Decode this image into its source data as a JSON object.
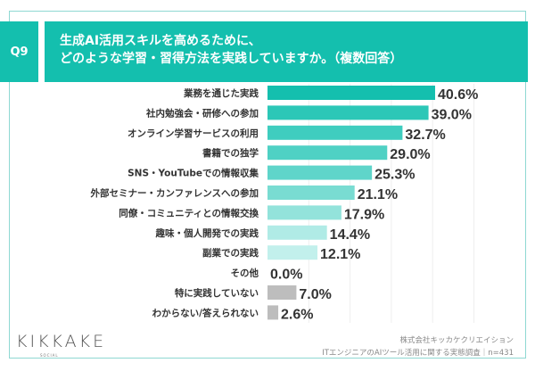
{
  "header": {
    "badge": "Q9",
    "title_line1": "生成AI活用スキルを高めるために、",
    "title_line2": "どのような学習・習得方法を実践していますか。（複数回答）"
  },
  "chart_data": {
    "type": "bar",
    "orientation": "horizontal",
    "categories": [
      "業務を通じた実践",
      "社内勉強会・研修への参加",
      "オンライン学習サービスの利用",
      "書籍での独学",
      "SNS・YouTubeでの情報収集",
      "外部セミナー・カンファレンスへの参加",
      "同僚・コミュニティとの情報交換",
      "趣味・個人開発での実践",
      "副業での実践",
      "その他",
      "特に実践していない",
      "わからない/答えられない"
    ],
    "values": [
      40.6,
      39.0,
      32.7,
      29.0,
      25.3,
      21.1,
      17.9,
      14.4,
      12.1,
      0.0,
      7.0,
      2.6
    ],
    "labels": [
      "40.6%",
      "39.0%",
      "32.7%",
      "29.0%",
      "25.3%",
      "21.1%",
      "17.9%",
      "14.4%",
      "12.1%",
      "0.0%",
      "7.0%",
      "2.6%"
    ],
    "colors": [
      "#14bfae",
      "#2cc7b7",
      "#3fcdbf",
      "#4fd1c4",
      "#5fd5ca",
      "#79dcd2",
      "#93e3db",
      "#b0ebe6",
      "#c2f0ec",
      "#c2f0ec",
      "#bdbdbd",
      "#bdbdbd"
    ],
    "xlim": [
      0,
      50
    ],
    "grid": true,
    "unit": "%"
  },
  "footer": {
    "logo": "KIKKAKE",
    "logo_sub": "SOCIAL",
    "source_line1": "株式会社キッカケクリエイション",
    "source_line2": "ITエンジニアのAIツール活用に関する実態調査｜n=431"
  }
}
